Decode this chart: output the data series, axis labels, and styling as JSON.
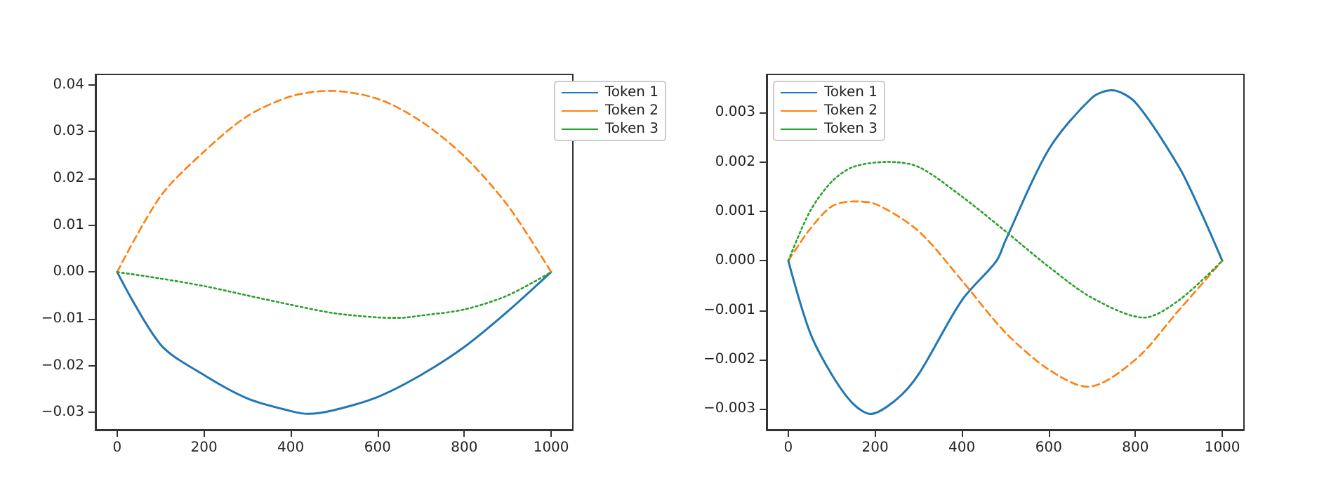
{
  "chart_data": [
    {
      "type": "line",
      "legend": "top right",
      "grid": false,
      "marker": "none",
      "xlim": [
        -50,
        1050
      ],
      "xticks": [
        0,
        200,
        400,
        600,
        800,
        1000
      ],
      "ylim": [
        -0.0337,
        0.0422
      ],
      "yticks": [
        {
          "value": -0.03,
          "label": "−0.03"
        },
        {
          "value": -0.02,
          "label": "−0.02"
        },
        {
          "value": -0.01,
          "label": "−0.01"
        },
        {
          "value": 0,
          "label": "0.00"
        },
        {
          "value": 0.01,
          "label": "0.01"
        },
        {
          "value": 0.02,
          "label": "0.02"
        },
        {
          "value": 0.03,
          "label": "0.03"
        },
        {
          "value": 0.04,
          "label": "0.04"
        }
      ],
      "series": [
        {
          "name": "Token 1",
          "color": "#1f77b4",
          "line_style": "solid",
          "x": [
            0,
            100,
            200,
            300,
            400,
            440,
            500,
            600,
            700,
            800,
            900,
            1000
          ],
          "values": [
            0,
            -0.0155,
            -0.022,
            -0.027,
            -0.0297,
            -0.0303,
            -0.0295,
            -0.0267,
            -0.022,
            -0.016,
            -0.0084,
            0
          ]
        },
        {
          "name": "Token 2",
          "color": "#ff7f0e",
          "line_style": "dashed",
          "x": [
            0,
            100,
            200,
            300,
            400,
            490,
            600,
            700,
            800,
            900,
            1000
          ],
          "values": [
            0,
            0.0162,
            0.0257,
            0.0333,
            0.0375,
            0.0387,
            0.037,
            0.0322,
            0.0247,
            0.0142,
            0
          ]
        },
        {
          "name": "Token 3",
          "color": "#2ca02c",
          "line_style": "dotted",
          "x": [
            0,
            100,
            200,
            300,
            400,
            500,
            600,
            650,
            700,
            800,
            900,
            1000
          ],
          "values": [
            0,
            -0.0014,
            -0.003,
            -0.005,
            -0.007,
            -0.0088,
            -0.0097,
            -0.0098,
            -0.0093,
            -0.008,
            -0.005,
            0
          ]
        }
      ]
    },
    {
      "type": "line",
      "legend": "top left",
      "grid": false,
      "marker": "none",
      "xlim": [
        -50,
        1050
      ],
      "xticks": [
        0,
        200,
        400,
        600,
        800,
        1000
      ],
      "ylim": [
        -0.00342,
        0.00377
      ],
      "yticks": [
        {
          "value": -0.003,
          "label": "−0.003"
        },
        {
          "value": -0.002,
          "label": "−0.002"
        },
        {
          "value": -0.001,
          "label": "−0.001"
        },
        {
          "value": 0,
          "label": "0.000"
        },
        {
          "value": 0.001,
          "label": "0.001"
        },
        {
          "value": 0.002,
          "label": "0.002"
        },
        {
          "value": 0.003,
          "label": "0.003"
        }
      ],
      "series": [
        {
          "name": "Token 1",
          "color": "#1f77b4",
          "line_style": "solid",
          "x": [
            0,
            50,
            100,
            150,
            190,
            250,
            300,
            400,
            480,
            500,
            600,
            700,
            745,
            800,
            900,
            950,
            1000
          ],
          "values": [
            0,
            -0.00145,
            -0.0023,
            -0.0029,
            -0.0031,
            -0.0028,
            -0.0023,
            -0.0008,
            0,
            0.0004,
            0.00225,
            0.0033,
            0.00345,
            0.0032,
            0.0019,
            0.001,
            0
          ]
        },
        {
          "name": "Token 2",
          "color": "#ff7f0e",
          "line_style": "dashed",
          "x": [
            0,
            50,
            100,
            150,
            200,
            300,
            400,
            500,
            600,
            690,
            800,
            900,
            1000
          ],
          "values": [
            0,
            0.00064,
            0.0011,
            0.0012,
            0.00115,
            0.0006,
            -0.0004,
            -0.00145,
            -0.0022,
            -0.00255,
            -0.002,
            -0.001,
            0
          ]
        },
        {
          "name": "Token 3",
          "color": "#2ca02c",
          "line_style": "dotted",
          "x": [
            0,
            50,
            100,
            150,
            230,
            300,
            400,
            500,
            600,
            700,
            820,
            900,
            1000
          ],
          "values": [
            0,
            0.001,
            0.0016,
            0.0019,
            0.002,
            0.0019,
            0.0013,
            0.0006,
            -0.00012,
            -0.00075,
            -0.00115,
            -0.0008,
            0
          ]
        }
      ]
    }
  ]
}
